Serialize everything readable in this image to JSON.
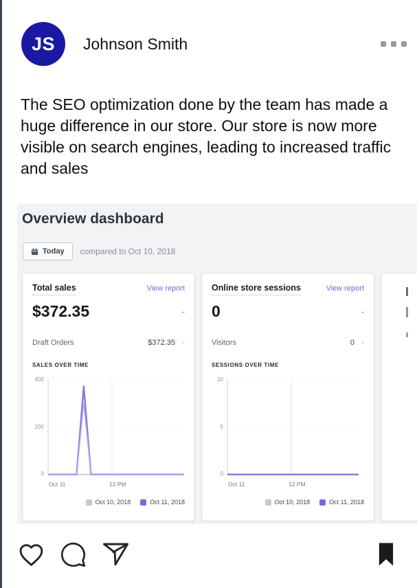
{
  "post": {
    "author": {
      "initials": "JS",
      "name": "Johnson Smith"
    },
    "caption": "The SEO optimization done by the team has made a huge difference in our store. Our store is now more visible on search engines, leading to increased traffic and sales",
    "icons": {
      "menu": "ellipsis-icon",
      "like": "heart-icon",
      "comment": "comment-icon",
      "share": "send-icon",
      "save": "bookmark-icon"
    },
    "colors": {
      "avatar_bg": "#1b19a3",
      "icon_stroke": "#262626"
    }
  },
  "dashboard": {
    "title": "Overview dashboard",
    "date_button": {
      "label": "Today",
      "icon": "calendar-icon"
    },
    "compared_text": "compared to Oct 10, 2018",
    "dash": "-",
    "cards": [
      {
        "title": "Total sales",
        "link": "View report",
        "value": "$372.35",
        "rows": [
          {
            "label": "Draft Orders",
            "value": "$372.35",
            "delta": "-"
          }
        ],
        "chart_title": "SALES OVER TIME"
      },
      {
        "title": "Online store sessions",
        "link": "View report",
        "value": "0",
        "rows": [
          {
            "label": "Visitors",
            "value": "0",
            "delta": "-"
          }
        ],
        "chart_title": "SESSIONS OVER TIME"
      }
    ],
    "legend": [
      {
        "label": "Oct 10, 2018",
        "color": "#c5c9cd"
      },
      {
        "label": "Oct 11, 2018",
        "color": "#7a68dc"
      }
    ],
    "colors": {
      "background": "#f2f3f5",
      "accent_purple": "#7a68dc",
      "link_purple": "#7468d4"
    }
  },
  "chart_data": [
    {
      "type": "line",
      "title": "SALES OVER TIME",
      "x_ticks": [
        "Oct 11",
        "12 PM"
      ],
      "y_ticks": [
        400,
        200,
        0
      ],
      "ylim": [
        0,
        400
      ],
      "x_gridline": 0.47,
      "grid": true,
      "legend_position": "bottom-right",
      "series": [
        {
          "name": "Oct 10, 2018",
          "color": "#c9ccd0",
          "width": 2,
          "points": [
            [
              0,
              0
            ],
            [
              1,
              0
            ]
          ]
        },
        {
          "name": "Oct 11, 2018",
          "color": "#8478e2",
          "width": 2.4,
          "echo": true,
          "points": [
            [
              0,
              0
            ],
            [
              0.21,
              0
            ],
            [
              0.262,
              372.35
            ],
            [
              0.315,
              0
            ],
            [
              1,
              0
            ]
          ]
        }
      ]
    },
    {
      "type": "line",
      "title": "SESSIONS OVER TIME",
      "x_ticks": [
        "Oct 11",
        "12 PM"
      ],
      "y_ticks": [
        10,
        5,
        0
      ],
      "ylim": [
        0,
        10
      ],
      "x_gridline": 0.47,
      "grid": true,
      "legend_position": "bottom-right",
      "series": [
        {
          "name": "Oct 10, 2018",
          "color": "#c9ccd0",
          "width": 2,
          "points": [
            [
              0,
              0
            ],
            [
              0.965,
              0
            ]
          ]
        },
        {
          "name": "Oct 11, 2018",
          "color": "#8478e2",
          "width": 2.4,
          "points": [
            [
              0,
              0
            ],
            [
              0.965,
              0
            ]
          ]
        }
      ]
    }
  ]
}
